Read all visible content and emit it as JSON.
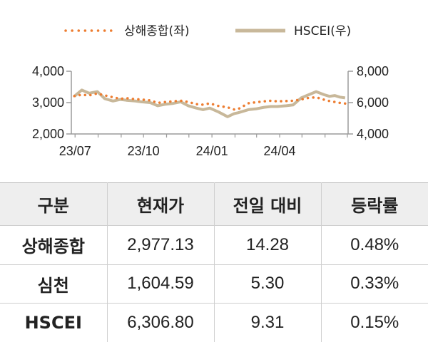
{
  "chart_data": {
    "type": "line",
    "legend": {
      "placement": "top-center"
    },
    "x_ticks": [
      "23/07",
      "23/10",
      "24/01",
      "24/04"
    ],
    "y_left": {
      "ticks": [
        "4,000",
        "3,000",
        "2,000"
      ],
      "range": [
        2000,
        4000
      ]
    },
    "y_right": {
      "ticks": [
        "8,000",
        "6,000",
        "4,000"
      ],
      "range": [
        4000,
        8000
      ]
    },
    "grid": false,
    "series": [
      {
        "name": "상해종합(좌)",
        "axis": "left",
        "style": "dotted",
        "color": "#ED7D31",
        "dates": [
          "2023-06-30",
          "2023-07-10",
          "2023-07-20",
          "2023-07-31",
          "2023-08-10",
          "2023-08-21",
          "2023-08-31",
          "2023-09-08",
          "2023-09-20",
          "2023-09-28",
          "2023-10-10",
          "2023-10-20",
          "2023-10-31",
          "2023-11-10",
          "2023-11-20",
          "2023-11-30",
          "2023-12-11",
          "2023-12-20",
          "2023-12-29",
          "2024-01-10",
          "2024-01-22",
          "2024-01-31",
          "2024-02-05",
          "2024-02-19",
          "2024-02-29",
          "2024-03-11",
          "2024-03-20",
          "2024-03-29",
          "2024-04-10",
          "2024-04-19",
          "2024-04-30",
          "2024-05-10",
          "2024-05-20",
          "2024-05-31",
          "2024-06-07",
          "2024-06-14",
          "2024-06-21",
          "2024-06-28"
        ],
        "values": [
          3210,
          3250,
          3230,
          3290,
          3230,
          3170,
          3120,
          3140,
          3110,
          3100,
          3070,
          2990,
          3020,
          3040,
          3060,
          3020,
          2950,
          2935,
          2975,
          2890,
          2850,
          2780,
          2790,
          2980,
          3010,
          3040,
          3060,
          3040,
          3050,
          3060,
          3100,
          3150,
          3170,
          3090,
          3050,
          3020,
          2990,
          2970
        ]
      },
      {
        "name": "HSCEI(우)",
        "axis": "right",
        "style": "solid",
        "color": "#C8B89A",
        "dates": [
          "2023-06-30",
          "2023-07-10",
          "2023-07-20",
          "2023-07-31",
          "2023-08-10",
          "2023-08-21",
          "2023-08-31",
          "2023-09-08",
          "2023-09-20",
          "2023-09-28",
          "2023-10-10",
          "2023-10-20",
          "2023-10-31",
          "2023-11-10",
          "2023-11-20",
          "2023-11-30",
          "2023-12-11",
          "2023-12-20",
          "2023-12-29",
          "2024-01-10",
          "2024-01-22",
          "2024-01-31",
          "2024-02-05",
          "2024-02-19",
          "2024-02-29",
          "2024-03-11",
          "2024-03-20",
          "2024-03-29",
          "2024-04-10",
          "2024-04-19",
          "2024-04-30",
          "2024-05-10",
          "2024-05-20",
          "2024-05-31",
          "2024-06-07",
          "2024-06-14",
          "2024-06-21",
          "2024-06-28"
        ],
        "values": [
          6400,
          6800,
          6600,
          6700,
          6250,
          6100,
          6200,
          6150,
          6100,
          6050,
          6000,
          5800,
          5900,
          5950,
          6050,
          5800,
          5650,
          5550,
          5650,
          5400,
          5100,
          5300,
          5350,
          5550,
          5600,
          5700,
          5750,
          5750,
          5800,
          5850,
          6300,
          6500,
          6700,
          6500,
          6400,
          6450,
          6350,
          6300
        ]
      }
    ]
  },
  "table": {
    "headers": [
      "구분",
      "현재가",
      "전일 대비",
      "등락률"
    ],
    "rows": [
      {
        "name": "상해종합",
        "price": "2,977.13",
        "change": "14.28",
        "rate": "0.48%"
      },
      {
        "name": "심천",
        "price": "1,604.59",
        "change": "5.30",
        "rate": "0.33%"
      },
      {
        "name": "HSCEI",
        "price": "6,306.80",
        "change": "9.31",
        "rate": "0.15%"
      }
    ]
  }
}
